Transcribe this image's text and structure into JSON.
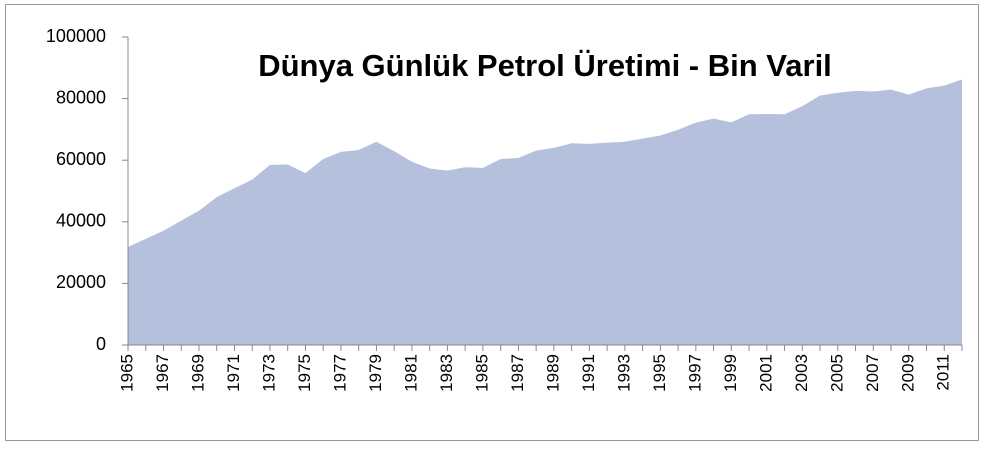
{
  "chart_data": {
    "type": "area",
    "title": "Dünya Günlük Petrol Üretimi - Bin Varil",
    "categories": [
      "1965",
      null,
      "1967",
      null,
      "1969",
      null,
      "1971",
      null,
      "1973",
      null,
      "1975",
      null,
      "1977",
      null,
      "1979",
      null,
      "1981",
      null,
      "1983",
      null,
      "1985",
      null,
      "1987",
      null,
      "1989",
      null,
      "1991",
      null,
      "1993",
      null,
      "1995",
      null,
      "1997",
      null,
      "1999",
      null,
      "2001",
      null,
      "2003",
      null,
      "2005",
      null,
      "2007",
      null,
      "2009",
      null,
      "2011",
      null
    ],
    "values": [
      31800,
      34500,
      37100,
      40400,
      43600,
      48000,
      50900,
      53700,
      58500,
      58600,
      55800,
      60400,
      62700,
      63300,
      66000,
      62900,
      59500,
      57300,
      56600,
      57700,
      57500,
      60400,
      60700,
      63100,
      64000,
      65500,
      65300,
      65700,
      66000,
      67000,
      68000,
      69900,
      72200,
      73500,
      72300,
      74900,
      75000,
      74900,
      77500,
      81000,
      81900,
      82500,
      82300,
      82900,
      81300,
      83300,
      84200,
      86200
    ],
    "color": "#b4c0dc",
    "ylim": [
      0,
      100000
    ],
    "yticks": [
      0,
      20000,
      40000,
      60000,
      80000,
      100000
    ]
  }
}
